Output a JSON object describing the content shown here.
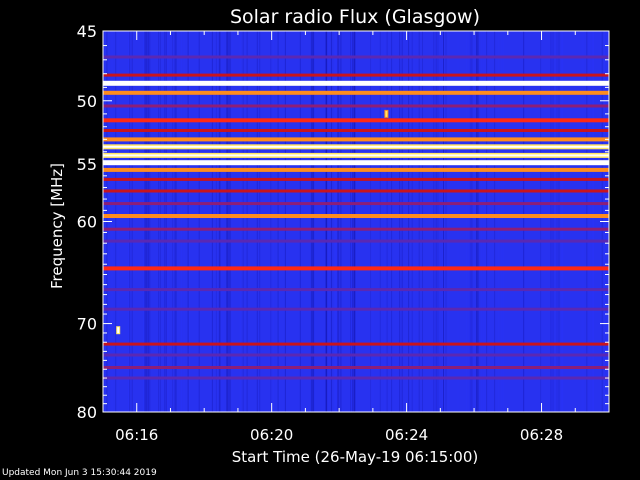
{
  "chart_data": {
    "type": "heatmap",
    "title": "Solar radio Flux (Glasgow)",
    "xlabel": "Start Time (26-May-19 06:15:00)",
    "ylabel": "Frequency [MHz]",
    "x_start_minutes": 0,
    "x_end_minutes": 15,
    "x_ticks": [
      {
        "minute": 1,
        "label": "06:16"
      },
      {
        "minute": 5,
        "label": "06:20"
      },
      {
        "minute": 9,
        "label": "06:24"
      },
      {
        "minute": 13,
        "label": "06:28"
      }
    ],
    "ylim": [
      45,
      80
    ],
    "y_scale": "log",
    "y_ticks": [
      45,
      50,
      55,
      60,
      70,
      80
    ],
    "colormap": [
      "#1414c8",
      "#2832f0",
      "#5a28b4",
      "#8c1e78",
      "#c8141e",
      "#ff2814",
      "#ff8c1e",
      "#ffe664",
      "#ffffff"
    ],
    "background_level": 0.12,
    "bands": [
      {
        "freq": 46.8,
        "level": 0.3
      },
      {
        "freq": 48.1,
        "level": 0.45
      },
      {
        "freq": 48.7,
        "level": 1.0
      },
      {
        "freq": 49.4,
        "level": 0.7
      },
      {
        "freq": 50.4,
        "level": 0.42
      },
      {
        "freq": 51.5,
        "level": 0.6
      },
      {
        "freq": 52.3,
        "level": 0.45
      },
      {
        "freq": 53.0,
        "level": 0.8
      },
      {
        "freq": 53.6,
        "level": 0.88
      },
      {
        "freq": 54.3,
        "level": 0.9
      },
      {
        "freq": 54.9,
        "level": 0.95
      },
      {
        "freq": 55.5,
        "level": 0.75
      },
      {
        "freq": 56.3,
        "level": 0.55
      },
      {
        "freq": 57.3,
        "level": 0.45
      },
      {
        "freq": 58.4,
        "level": 0.4
      },
      {
        "freq": 59.5,
        "level": 0.75
      },
      {
        "freq": 60.7,
        "level": 0.4
      },
      {
        "freq": 61.8,
        "level": 0.3
      },
      {
        "freq": 64.4,
        "level": 0.62
      },
      {
        "freq": 66.5,
        "level": 0.25
      },
      {
        "freq": 68.5,
        "level": 0.28
      },
      {
        "freq": 72.2,
        "level": 0.45
      },
      {
        "freq": 73.4,
        "level": 0.3
      },
      {
        "freq": 74.8,
        "level": 0.42
      },
      {
        "freq": 76.0,
        "level": 0.3
      }
    ],
    "bursts": [
      {
        "minute": 0.45,
        "freq": 70.7,
        "level": 1.0
      },
      {
        "minute": 8.4,
        "freq": 51.0,
        "level": 0.85
      }
    ]
  },
  "footer": {
    "updated": "Updated Mon Jun  3 15:30:44 2019"
  }
}
